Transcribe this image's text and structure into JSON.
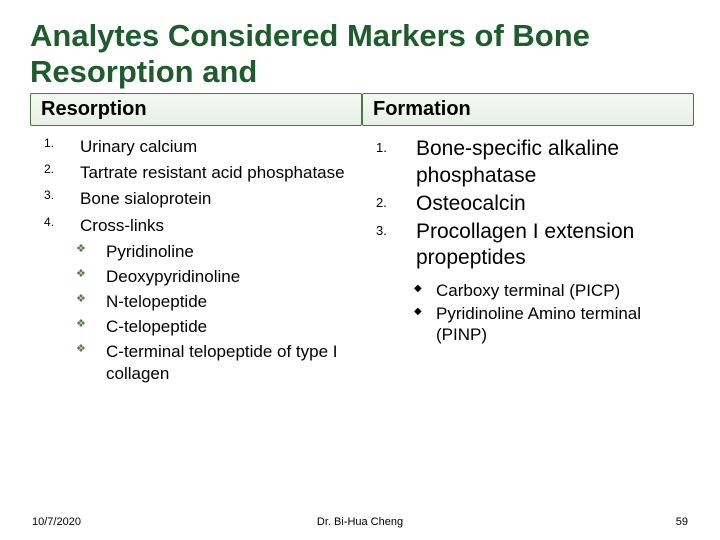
{
  "title": "Analytes Considered Markers of Bone Resorption and",
  "left": {
    "header": "Resorption",
    "items": [
      "Urinary calcium",
      "Tartrate resistant acid phosphatase",
      "Bone sialoprotein",
      "Cross-links"
    ],
    "subitems": [
      "Pyridinoline",
      "Deoxypyridinoline",
      "N-telopeptide",
      "C-telopeptide",
      "C-terminal telopeptide of type I collagen"
    ]
  },
  "right": {
    "header": "Formation",
    "items": [
      "Bone-specific alkaline phosphatase",
      "Osteocalcin",
      "Procollagen I extension propeptides"
    ],
    "subitems": [
      "Carboxy terminal (PICP)",
      "Pyridinoline Amino terminal (PINP)"
    ]
  },
  "footer": {
    "date": "10/7/2020",
    "center": "Dr. Bi-Hua Cheng",
    "page": "59"
  },
  "colors": {
    "title": "#1e5c2e",
    "header_border": "#4a7a3a",
    "diamond_left": "#5a7a4a",
    "text": "#000000",
    "background": "#ffffff"
  }
}
